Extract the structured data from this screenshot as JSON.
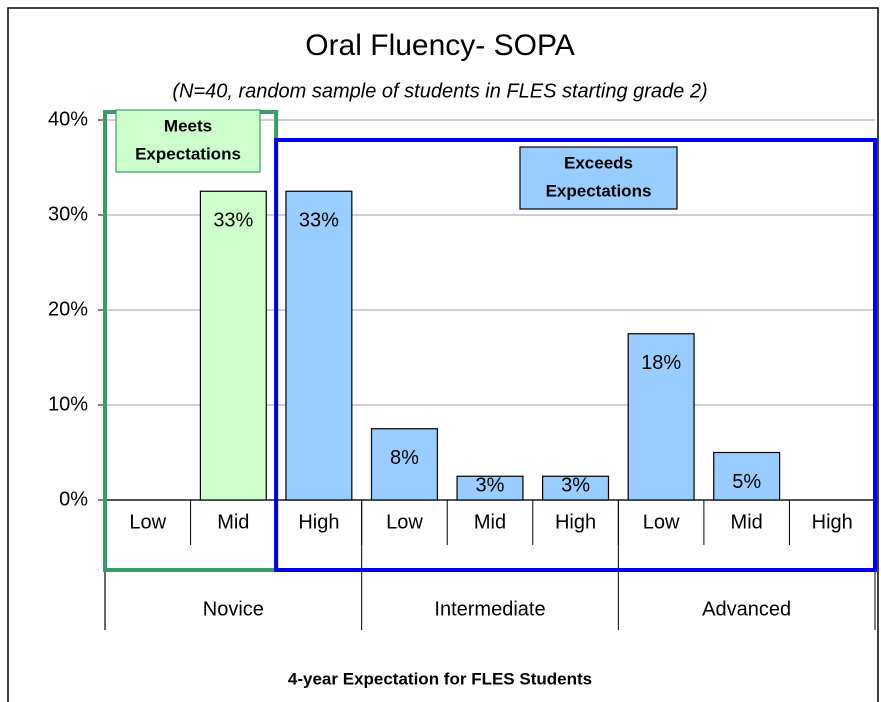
{
  "chart_data": {
    "type": "bar",
    "title": "Oral Fluency- SOPA",
    "subtitle": "(N=40, random sample of students in FLES starting grade 2)",
    "x_label": "4-year Expectation for FLES Students",
    "categories": [
      "Low",
      "Mid",
      "High",
      "Low",
      "Mid",
      "High",
      "Low",
      "Mid",
      "High"
    ],
    "groups": [
      {
        "name": "Novice",
        "size": 3
      },
      {
        "name": "Intermediate",
        "size": 3
      },
      {
        "name": "Advanced",
        "size": 3
      }
    ],
    "values": [
      0,
      32.5,
      32.5,
      7.5,
      2.5,
      2.5,
      17.5,
      5,
      0
    ],
    "value_labels": [
      null,
      "33%",
      "33%",
      "8%",
      "3%",
      "3%",
      "18%",
      "5%",
      null
    ],
    "colors": [
      "#99ccff",
      "#ccffcc",
      "#99ccff",
      "#99ccff",
      "#99ccff",
      "#99ccff",
      "#99ccff",
      "#99ccff",
      "#99ccff"
    ],
    "ylim": [
      0,
      40
    ],
    "yticks": [
      {
        "value": 0,
        "label": "0%"
      },
      {
        "value": 10,
        "label": "10%"
      },
      {
        "value": 20,
        "label": "20%"
      },
      {
        "value": 30,
        "label": "30%"
      },
      {
        "value": 40,
        "label": "40%"
      }
    ],
    "grid": true,
    "annotations": [
      {
        "lines": [
          "Meets",
          "Expectations"
        ],
        "color": "#ccffcc",
        "outline": "#3d9a6a",
        "from": 0,
        "to": 1
      },
      {
        "lines": [
          "Exceeds",
          "Expectations"
        ],
        "color": "#99ccff",
        "outline": "#0000ee",
        "from": 2,
        "to": 8
      }
    ]
  }
}
